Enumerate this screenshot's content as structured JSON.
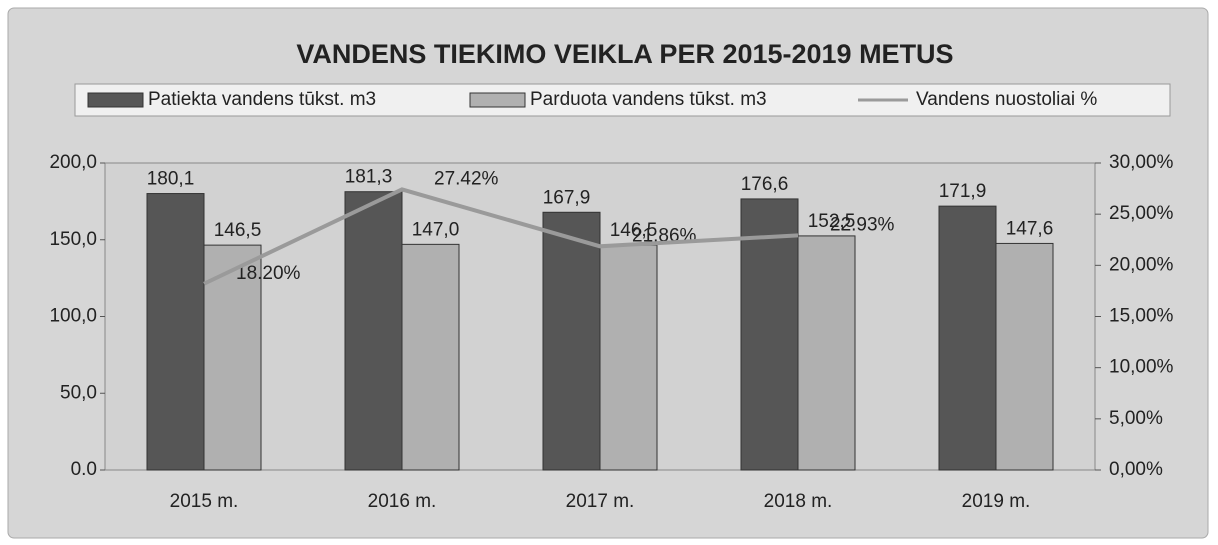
{
  "chart_data": {
    "type": "bar_line",
    "title": "VANDENS TIEKIMO VEIKLA PER 2015-2019 METUS",
    "categories": [
      "2015 m.",
      "2016 m.",
      "2017 m.",
      "2018 m.",
      "2019 m."
    ],
    "series": [
      {
        "name": "Patiekta  vandens tūkst. m3",
        "color": "#565656",
        "type": "bar",
        "values": [
          180.1,
          181.3,
          167.9,
          176.6,
          171.9
        ],
        "value_labels": [
          "180,1",
          "181,3",
          "167,9",
          "176,6",
          "171,9"
        ]
      },
      {
        "name": "Parduota vandens tūkst. m3",
        "color": "#b0b0b0",
        "type": "bar",
        "values": [
          146.5,
          147.0,
          146.5,
          152.5,
          147.6
        ],
        "value_labels": [
          "146,5",
          "147,0",
          "146,5",
          "152,5",
          "147,6"
        ]
      },
      {
        "name": "Vandens nuostoliai %",
        "color": "#9a9a9a",
        "type": "line",
        "axis": "y2",
        "values": [
          18.2,
          27.42,
          21.86,
          22.93,
          null
        ],
        "value_labels": [
          "18.20%",
          "27.42%",
          "21.86%",
          "22.93%",
          null
        ]
      }
    ],
    "ylim": [
      0,
      200
    ],
    "yticks": [
      {
        "value": 0,
        "label": "0.0"
      },
      {
        "value": 50,
        "label": "50,0"
      },
      {
        "value": 100,
        "label": "100,0"
      },
      {
        "value": 150,
        "label": "150,0"
      },
      {
        "value": 200,
        "label": "200,0"
      }
    ],
    "y2lim": [
      0,
      30
    ],
    "y2ticks": [
      {
        "value": 0,
        "label": "0,00%"
      },
      {
        "value": 5,
        "label": "5,00%"
      },
      {
        "value": 10,
        "label": "10,00%"
      },
      {
        "value": 15,
        "label": "15,00%"
      },
      {
        "value": 20,
        "label": "20,00%"
      },
      {
        "value": 25,
        "label": "25,00%"
      },
      {
        "value": 30,
        "label": "30,00%"
      }
    ]
  }
}
